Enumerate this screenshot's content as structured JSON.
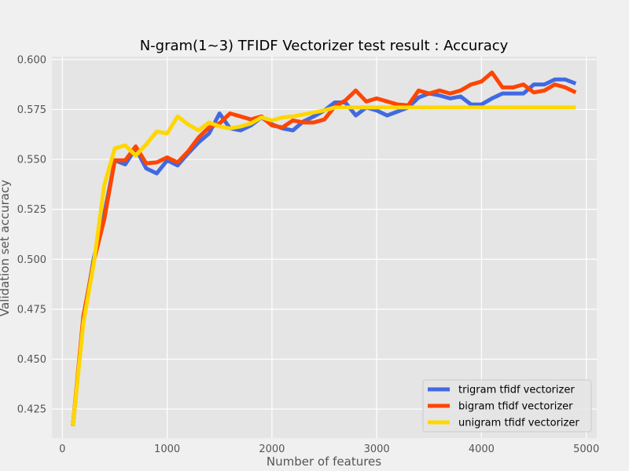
{
  "chart_data": {
    "type": "line",
    "title": "N-gram(1~3) TFIDF Vectorizer test result : Accuracy",
    "xlabel": "Number of features",
    "ylabel": "Validation set accuracy",
    "xlim": [
      -100,
      5100
    ],
    "ylim": [
      0.4105,
      0.6015
    ],
    "xticks": [
      0,
      1000,
      2000,
      3000,
      4000,
      5000
    ],
    "xtick_labels": [
      "0",
      "1000",
      "2000",
      "3000",
      "4000",
      "5000"
    ],
    "yticks": [
      0.425,
      0.45,
      0.475,
      0.5,
      0.525,
      0.55,
      0.575,
      0.6
    ],
    "ytick_labels": [
      "0.425",
      "0.450",
      "0.475",
      "0.500",
      "0.525",
      "0.550",
      "0.575",
      "0.600"
    ],
    "grid": true,
    "legend_position": "lower-right",
    "x": [
      100,
      200,
      300,
      400,
      500,
      600,
      700,
      800,
      900,
      1000,
      1100,
      1200,
      1300,
      1400,
      1500,
      1600,
      1700,
      1800,
      1900,
      2000,
      2100,
      2200,
      2300,
      2400,
      2500,
      2600,
      2700,
      2800,
      2900,
      3000,
      3100,
      3200,
      3300,
      3400,
      3500,
      3600,
      3700,
      3800,
      3900,
      4000,
      4100,
      4200,
      4300,
      4400,
      4500,
      4600,
      4700,
      4800,
      4900
    ],
    "series": [
      {
        "name": "trigram tfidf vectorizer",
        "color": "#4169e1",
        "values": [
          0.4165,
          0.4695,
          0.5005,
          0.5225,
          0.5495,
          0.5475,
          0.5555,
          0.5455,
          0.543,
          0.5495,
          0.547,
          0.553,
          0.5585,
          0.563,
          0.573,
          0.5655,
          0.5645,
          0.567,
          0.571,
          0.5675,
          0.5655,
          0.5645,
          0.569,
          0.5715,
          0.5745,
          0.5785,
          0.5785,
          0.572,
          0.576,
          0.5745,
          0.572,
          0.574,
          0.576,
          0.581,
          0.583,
          0.582,
          0.5805,
          0.5815,
          0.5775,
          0.5775,
          0.5805,
          0.583,
          0.583,
          0.583,
          0.5875,
          0.5875,
          0.59,
          0.59,
          0.588
        ]
      },
      {
        "name": "bigram tfidf vectorizer",
        "color": "#ff4500",
        "values": [
          0.4165,
          0.4715,
          0.499,
          0.52,
          0.5495,
          0.5495,
          0.5565,
          0.548,
          0.5485,
          0.551,
          0.5485,
          0.554,
          0.561,
          0.566,
          0.568,
          0.573,
          0.5715,
          0.57,
          0.5715,
          0.567,
          0.566,
          0.5695,
          0.5685,
          0.5685,
          0.57,
          0.5765,
          0.5795,
          0.5845,
          0.579,
          0.5805,
          0.579,
          0.5775,
          0.577,
          0.5845,
          0.583,
          0.5845,
          0.583,
          0.5845,
          0.5875,
          0.589,
          0.5935,
          0.586,
          0.586,
          0.5875,
          0.5835,
          0.5845,
          0.5875,
          0.586,
          0.5835
        ]
      },
      {
        "name": "unigram tfidf vectorizer",
        "color": "#ffd700",
        "values": [
          0.4165,
          0.468,
          0.498,
          0.537,
          0.5555,
          0.557,
          0.552,
          0.5575,
          0.564,
          0.563,
          0.5715,
          0.5675,
          0.5645,
          0.5685,
          0.5665,
          0.5655,
          0.5665,
          0.568,
          0.571,
          0.5695,
          0.571,
          0.5715,
          0.5725,
          0.5735,
          0.5745,
          0.576,
          0.576,
          0.576,
          0.576,
          0.576,
          0.576,
          0.576,
          0.576,
          0.576,
          0.576,
          0.576,
          0.576,
          0.576,
          0.576,
          0.576,
          0.576,
          0.576,
          0.576,
          0.576,
          0.576,
          0.576,
          0.576,
          0.576,
          0.576
        ]
      }
    ]
  }
}
